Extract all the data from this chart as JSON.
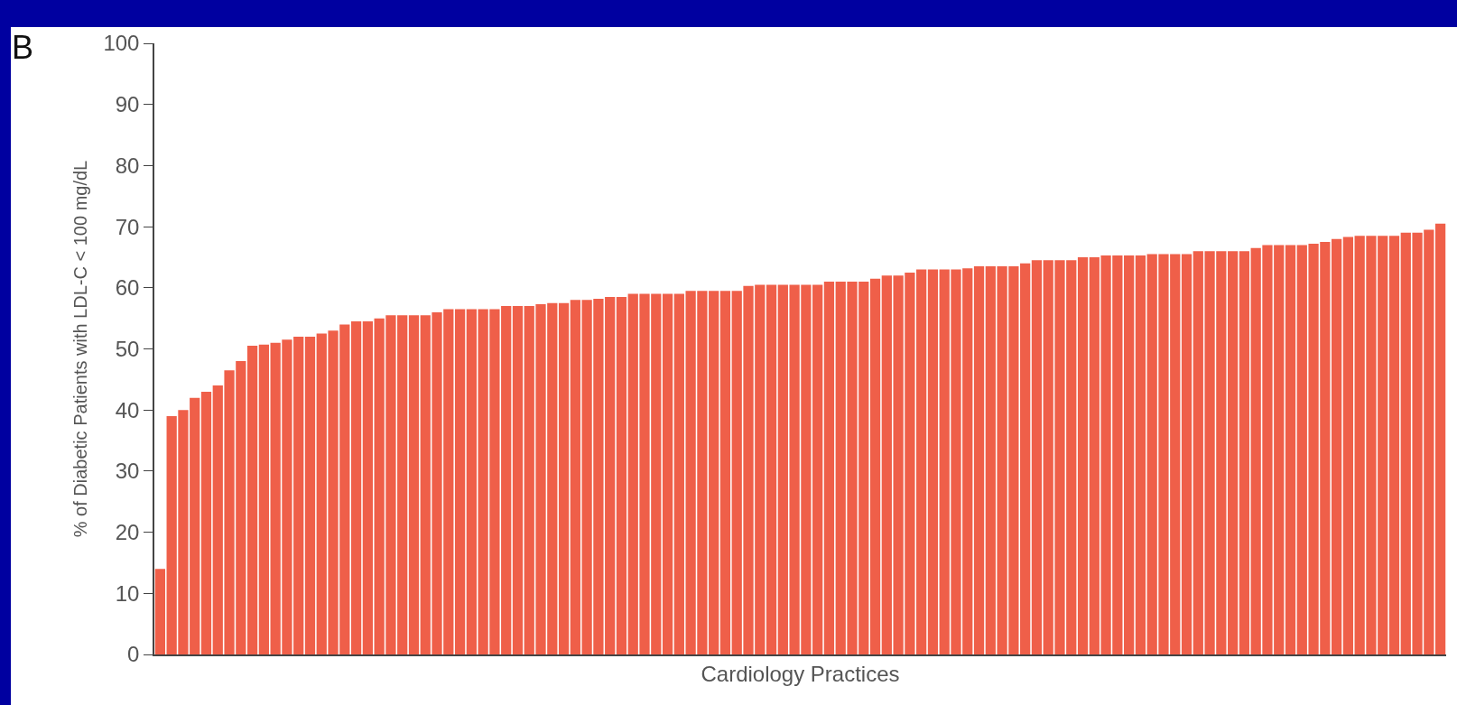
{
  "chart_data": {
    "type": "bar",
    "annotations": [
      "B"
    ],
    "xlabel": "Cardiology Practices",
    "ylabel": "% of Diabetic Patients with LDL-C < 100 mg/dL",
    "color": "#ef5f49",
    "ylim": [
      0,
      100
    ],
    "yticks": [
      0,
      10,
      20,
      30,
      40,
      50,
      60,
      70,
      80,
      90,
      100
    ],
    "grid": false,
    "categories": [
      null,
      null,
      null,
      null,
      null,
      null,
      null,
      null,
      null,
      null,
      null,
      null,
      null,
      null,
      null,
      null,
      null,
      null,
      null,
      null,
      null,
      null,
      null,
      null,
      null,
      null,
      null,
      null,
      null,
      null,
      null,
      null,
      null,
      null,
      null,
      null,
      null,
      null,
      null,
      null,
      null,
      null,
      null,
      null,
      null,
      null,
      null,
      null,
      null,
      null,
      null,
      null,
      null,
      null,
      null,
      null,
      null,
      null,
      null,
      null,
      null,
      null,
      null,
      null,
      null,
      null,
      null,
      null,
      null,
      null,
      null,
      null,
      null,
      null,
      null,
      null,
      null,
      null,
      null,
      null,
      null,
      null,
      null,
      null,
      null,
      null,
      null,
      null,
      null,
      null,
      null,
      null,
      null,
      null,
      null,
      null,
      null,
      null,
      null,
      null,
      null,
      null,
      null,
      null,
      null,
      null,
      null,
      null,
      null,
      null,
      null,
      null
    ],
    "values": [
      14,
      39,
      40,
      42,
      43,
      44,
      46.5,
      48,
      50.5,
      50.7,
      51,
      51.5,
      52,
      52,
      52.5,
      53,
      54,
      54.5,
      54.5,
      55,
      55.5,
      55.5,
      55.5,
      55.5,
      56,
      56.5,
      56.5,
      56.5,
      56.5,
      56.5,
      57,
      57,
      57,
      57.3,
      57.5,
      57.5,
      58,
      58,
      58.2,
      58.5,
      58.5,
      59,
      59,
      59,
      59,
      59,
      59.5,
      59.5,
      59.5,
      59.5,
      59.5,
      60.3,
      60.5,
      60.5,
      60.5,
      60.5,
      60.5,
      60.5,
      61,
      61,
      61,
      61,
      61.5,
      62,
      62,
      62.5,
      63,
      63,
      63,
      63,
      63.2,
      63.5,
      63.5,
      63.5,
      63.5,
      64,
      64.5,
      64.5,
      64.5,
      64.5,
      65,
      65,
      65.3,
      65.3,
      65.3,
      65.3,
      65.5,
      65.5,
      65.5,
      65.5,
      66,
      66,
      66,
      66,
      66,
      66.5,
      67,
      67,
      67,
      67,
      67.2,
      67.5,
      68,
      68.3,
      68.5,
      68.5,
      68.5,
      68.5,
      69,
      69,
      69.5,
      70.5
    ]
  }
}
